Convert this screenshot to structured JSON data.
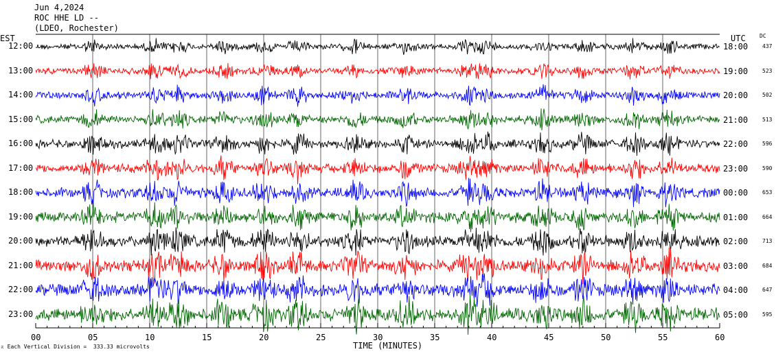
{
  "header": {
    "date": "Jun 4,2024",
    "station": "ROC HHE LD --",
    "location": "(LDEO, Rochester)"
  },
  "left_tz": "EST",
  "right_tz": "UTC",
  "dc_label": "DC",
  "scale_note": "Each Vertical Division =  333.33 microvolts",
  "colors": {
    "black": "#000000",
    "red": "#ff0000",
    "blue": "#0000ff",
    "green": "#006600"
  },
  "chart_data": {
    "type": "line",
    "title": "Jun 4,2024 ROC HHE LD -- (LDEO, Rochester)",
    "xlabel": "TIME (MINUTES)",
    "xlim": [
      0,
      60
    ],
    "x_ticks": [
      "00",
      "05",
      "10",
      "15",
      "20",
      "25",
      "30",
      "35",
      "40",
      "45",
      "50",
      "55",
      "60"
    ],
    "grid": true,
    "rows": [
      {
        "est": "12:00",
        "utc": "18:00",
        "dc": "437",
        "color": "black"
      },
      {
        "est": "13:00",
        "utc": "19:00",
        "dc": "523",
        "color": "red"
      },
      {
        "est": "14:00",
        "utc": "20:00",
        "dc": "502",
        "color": "blue"
      },
      {
        "est": "15:00",
        "utc": "21:00",
        "dc": "513",
        "color": "green"
      },
      {
        "est": "16:00",
        "utc": "22:00",
        "dc": "596",
        "color": "black"
      },
      {
        "est": "17:00",
        "utc": "23:00",
        "dc": "590",
        "color": "red"
      },
      {
        "est": "18:00",
        "utc": "00:00",
        "dc": "653",
        "color": "blue"
      },
      {
        "est": "19:00",
        "utc": "01:00",
        "dc": "664",
        "color": "green"
      },
      {
        "est": "20:00",
        "utc": "02:00",
        "dc": "713",
        "color": "black"
      },
      {
        "est": "21:00",
        "utc": "03:00",
        "dc": "684",
        "color": "red"
      },
      {
        "est": "22:00",
        "utc": "04:00",
        "dc": "647",
        "color": "blue"
      },
      {
        "est": "23:00",
        "utc": "05:00",
        "dc": "595",
        "color": "green"
      }
    ]
  }
}
